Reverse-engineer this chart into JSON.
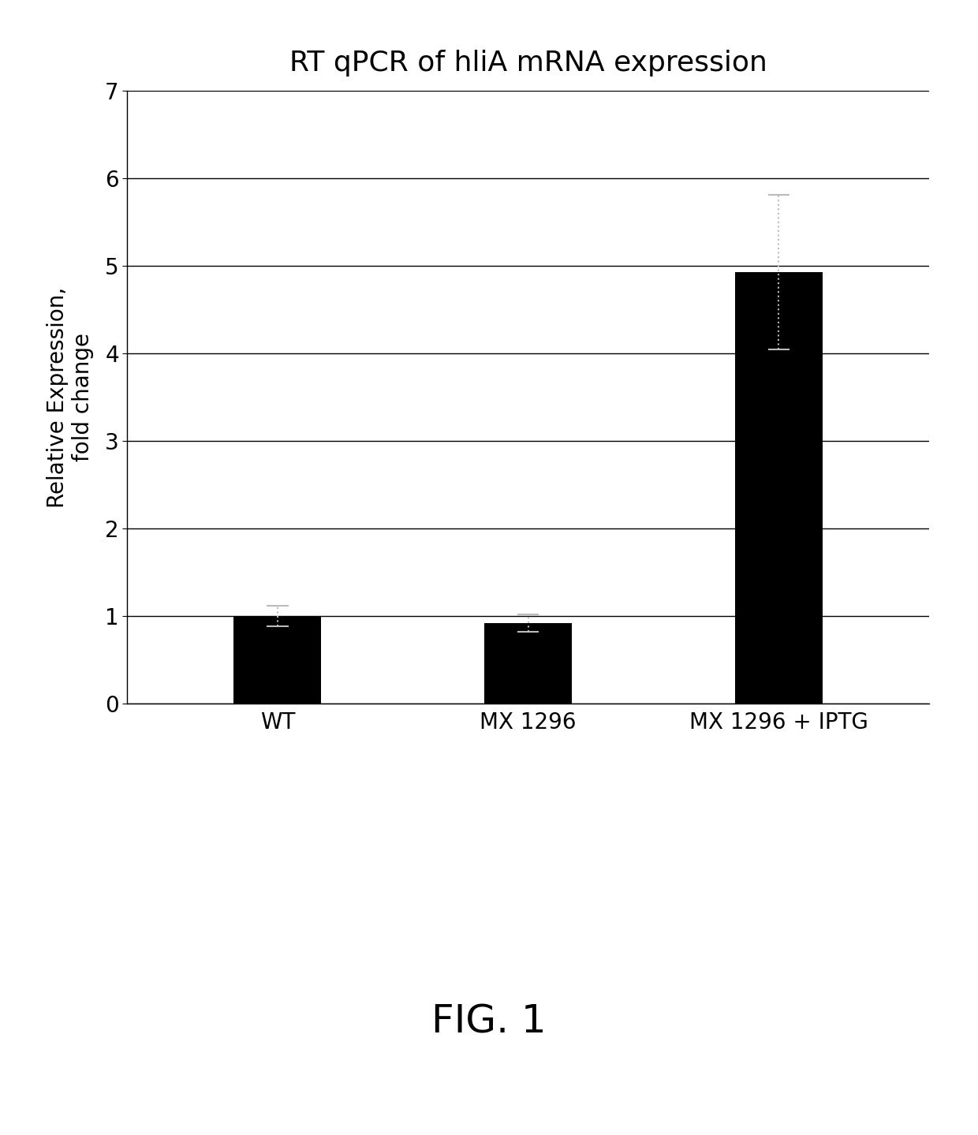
{
  "title": "RT qPCR of hliA mRNA expression",
  "ylabel": "Relative Expression,\nfold change",
  "categories": [
    "WT",
    "MX 1296",
    "MX 1296 + IPTG"
  ],
  "values": [
    1.0,
    0.92,
    4.93
  ],
  "errors_upper": [
    0.12,
    0.1,
    0.88
  ],
  "errors_lower": [
    0.12,
    0.1,
    0.88
  ],
  "bar_color": "#000000",
  "bar_width": 0.35,
  "ylim": [
    0,
    7
  ],
  "yticks": [
    0,
    1,
    2,
    3,
    4,
    5,
    6,
    7
  ],
  "title_fontsize": 26,
  "label_fontsize": 20,
  "tick_fontsize": 20,
  "xlabel_fontsize": 20,
  "fig_label": "FIG. 1",
  "fig_label_fontsize": 36,
  "background_color": "#ffffff",
  "grid_color": "#000000",
  "error_capsize": 4,
  "error_color": "#bbbbbb",
  "error_linewidth": 1.5
}
